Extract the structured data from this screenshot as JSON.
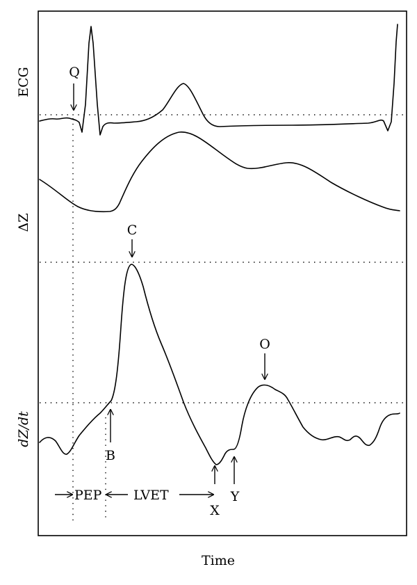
{
  "axes": {
    "ecg": "ECG",
    "delta_z": "ΔZ",
    "dzdt": "dZ/dt",
    "time": "Time"
  },
  "points": {
    "q": "Q",
    "c": "C",
    "b": "B",
    "o": "O",
    "x": "X",
    "y": "Y"
  },
  "intervals": {
    "pep": "PEP",
    "lvet": "LVET"
  }
}
